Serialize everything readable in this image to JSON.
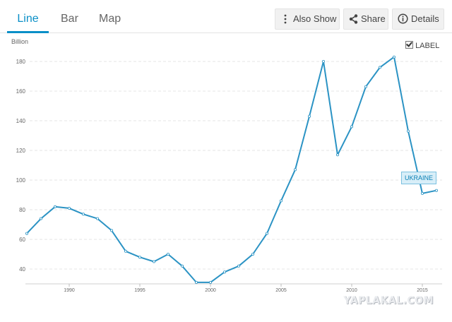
{
  "tabs": [
    {
      "label": "Line",
      "active": true
    },
    {
      "label": "Bar",
      "active": false
    },
    {
      "label": "Map",
      "active": false
    }
  ],
  "toolbar": {
    "also_show": "Also Show",
    "share": "Share",
    "details": "Details"
  },
  "colors": {
    "accent": "#0a8fc7",
    "line": "#2b93c4",
    "grid": "#e6e6e6"
  },
  "label_toggle": {
    "text": "LABEL",
    "checked": true
  },
  "watermark": "YAPLAKAL.COM",
  "chart_data": {
    "type": "line",
    "unit_label": "Billion",
    "x": [
      1987,
      1988,
      1989,
      1990,
      1991,
      1992,
      1993,
      1994,
      1995,
      1996,
      1997,
      1998,
      1999,
      2000,
      2001,
      2002,
      2003,
      2004,
      2005,
      2006,
      2007,
      2008,
      2009,
      2010,
      2011,
      2012,
      2013,
      2014,
      2015,
      2016
    ],
    "series": [
      {
        "name": "UKRAINE",
        "values": [
          64,
          74,
          82,
          81,
          77,
          74,
          66,
          52,
          48,
          45,
          50,
          42,
          31,
          31,
          38,
          42,
          50,
          64,
          86,
          107,
          143,
          180,
          117,
          136,
          163,
          176,
          183,
          133,
          91,
          93
        ]
      }
    ],
    "ylim": [
      30,
      190
    ],
    "yticks": [
      40,
      60,
      80,
      100,
      120,
      140,
      160,
      180
    ],
    "xlim": [
      1986.9,
      2016.4
    ],
    "xticks": [
      1990,
      1995,
      2000,
      2005,
      2010,
      2015
    ],
    "grid": "horizontal-dashed",
    "legend": "end-of-line label"
  }
}
